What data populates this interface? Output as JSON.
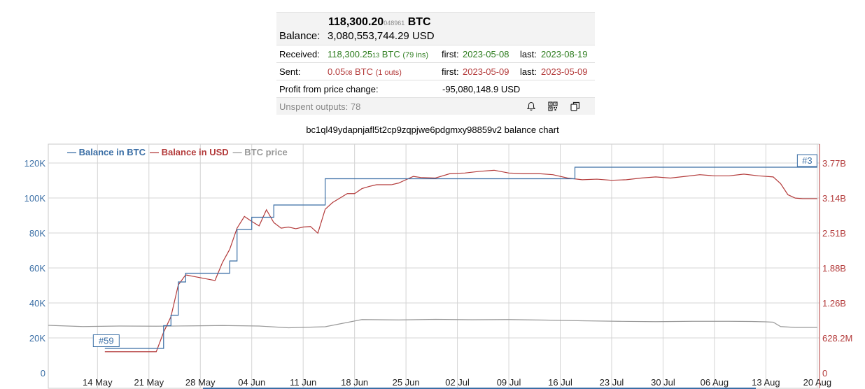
{
  "summary": {
    "btc_main": "118,300.20",
    "btc_small": "048961",
    "btc_unit": "BTC",
    "balance_label": "Balance:",
    "balance_usd": "3,080,553,744.29 USD",
    "received": {
      "label": "Received:",
      "amount_main": "118,300.25",
      "amount_small": "13",
      "unit": "BTC",
      "count": "(79 ins)",
      "first_label": "first:",
      "first": "2023-05-08",
      "last_label": "last:",
      "last": "2023-08-19"
    },
    "sent": {
      "label": "Sent:",
      "amount_main": "0.05",
      "amount_small": "08",
      "unit": "BTC",
      "count": "(1 outs)",
      "first_label": "first:",
      "first": "2023-05-09",
      "last_label": "last:",
      "last": "2023-05-09"
    },
    "profit_label": "Profit from price change:",
    "profit_value": "-95,080,148.9 USD",
    "unspent_label": "Unspent outputs: 78",
    "icons": [
      "bell-icon",
      "qr-code-icon",
      "copy-icon"
    ]
  },
  "chart_title": "bc1ql49ydapnjafl5t2cp9zqpjwe6pdgmxy98859v2 balance chart",
  "chart_data": {
    "type": "line",
    "legend": [
      {
        "name": "Balance in BTC",
        "color": "#3a6ea5"
      },
      {
        "name": "Balance in USD",
        "color": "#b33a3a"
      },
      {
        "name": "BTC price",
        "color": "#999999"
      }
    ],
    "legend_position": "top-left",
    "x_tick_labels": [
      "14 May",
      "21 May",
      "28 May",
      "04 Jun",
      "11 Jun",
      "18 Jun",
      "25 Jun",
      "02 Jul",
      "09 Jul",
      "16 Jul",
      "23 Jul",
      "30 Jul",
      "06 Aug",
      "13 Aug",
      "20 Aug"
    ],
    "x_range": [
      7.3,
      112.3
    ],
    "y_left_ticks": [
      "0",
      "20K",
      "40K",
      "60K",
      "80K",
      "100K",
      "120K"
    ],
    "y_left_range": [
      0,
      120000
    ],
    "y_right_ticks": [
      "0",
      "628.2M",
      "1.26B",
      "1.88B",
      "2.51B",
      "3.14B",
      "3.77B"
    ],
    "y_right_range": [
      0,
      3770000000
    ],
    "grid": true,
    "annotations": [
      {
        "label": "#59",
        "x": 15,
        "y": 14600
      },
      {
        "label": "#3",
        "x": 111,
        "y": 117600
      }
    ],
    "series": [
      {
        "name": "Balance in BTC",
        "step": true,
        "x": [
          15,
          22,
          23,
          24,
          25,
          26,
          31,
          32,
          33,
          35,
          38,
          45,
          53,
          79,
          112
        ],
        "y": [
          14000,
          14000,
          27000,
          33000,
          52000,
          57000,
          57000,
          64000,
          82000,
          89000,
          96000,
          111000,
          111000,
          117600,
          117600
        ]
      },
      {
        "name": "Balance in USD",
        "step": false,
        "x": [
          15,
          22,
          23,
          24,
          25,
          26,
          28,
          30,
          31,
          32,
          33,
          34,
          35,
          36,
          37,
          38,
          39,
          40,
          41,
          42,
          43,
          44,
          45,
          46,
          47,
          48,
          49,
          50,
          51,
          52,
          53,
          54,
          55,
          56,
          57,
          58,
          60,
          62,
          64,
          66,
          68,
          70,
          72,
          74,
          76,
          78,
          80,
          82,
          84,
          86,
          88,
          90,
          92,
          94,
          96,
          98,
          100,
          102,
          104,
          106,
          107,
          108,
          109,
          110,
          111,
          112
        ],
        "y": [
          380000000,
          380000000,
          730000000,
          1010000000,
          1580000000,
          1760000000,
          1710000000,
          1660000000,
          1980000000,
          2220000000,
          2600000000,
          2810000000,
          2720000000,
          2640000000,
          2930000000,
          2700000000,
          2600000000,
          2620000000,
          2590000000,
          2620000000,
          2630000000,
          2510000000,
          2940000000,
          3060000000,
          3140000000,
          3220000000,
          3220000000,
          3310000000,
          3350000000,
          3380000000,
          3380000000,
          3380000000,
          3410000000,
          3470000000,
          3530000000,
          3510000000,
          3500000000,
          3580000000,
          3590000000,
          3620000000,
          3640000000,
          3590000000,
          3580000000,
          3580000000,
          3560000000,
          3500000000,
          3470000000,
          3480000000,
          3460000000,
          3470000000,
          3500000000,
          3520000000,
          3500000000,
          3530000000,
          3560000000,
          3540000000,
          3540000000,
          3570000000,
          3540000000,
          3520000000,
          3400000000,
          3200000000,
          3140000000,
          3130000000,
          3130000000,
          3130000000
        ]
      },
      {
        "name": "BTC price",
        "step": false,
        "x": [
          7.3,
          12,
          17,
          22,
          27,
          31,
          36,
          40,
          45,
          50,
          55,
          60,
          65,
          70,
          75,
          80,
          85,
          90,
          95,
          100,
          103,
          105,
          106,
          107,
          109,
          112
        ],
        "y": [
          27200,
          26500,
          26800,
          26700,
          26900,
          27100,
          26800,
          25800,
          26400,
          30500,
          30300,
          30600,
          30400,
          30500,
          30200,
          29800,
          29500,
          29300,
          29500,
          29500,
          29400,
          29200,
          29000,
          26500,
          26000,
          26000
        ]
      }
    ]
  }
}
